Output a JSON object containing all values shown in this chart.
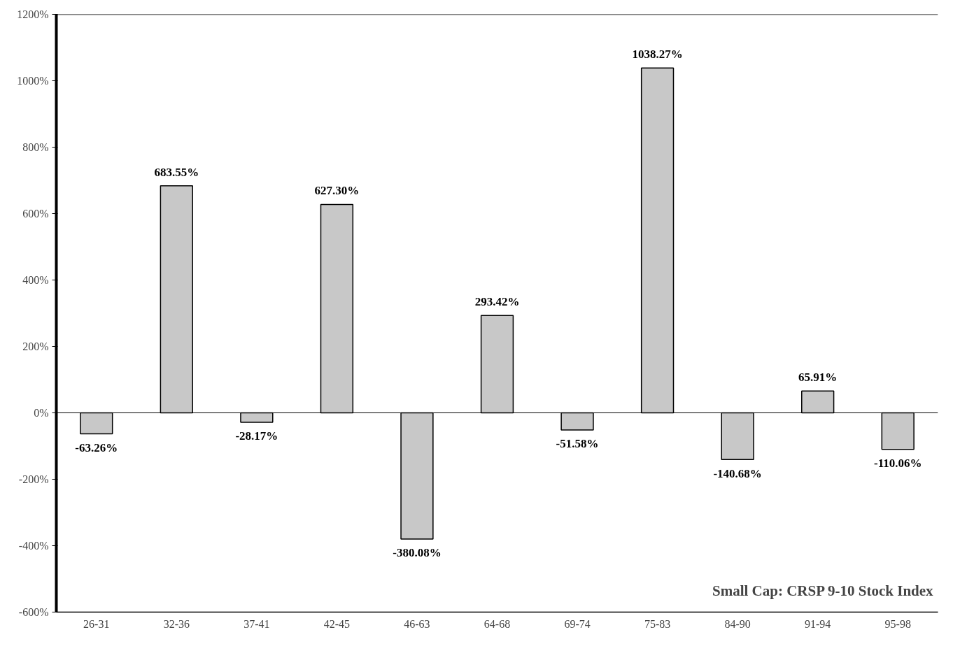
{
  "chart_data": {
    "type": "bar",
    "categories": [
      "26-31",
      "32-36",
      "37-41",
      "42-45",
      "46-63",
      "64-68",
      "69-74",
      "75-83",
      "84-90",
      "91-94",
      "95-98"
    ],
    "values": [
      -63.26,
      683.55,
      -28.17,
      627.3,
      -380.08,
      293.42,
      -51.58,
      1038.27,
      -140.68,
      65.91,
      -110.06
    ],
    "value_labels": [
      "-63.26%",
      "683.55%",
      "-28.17%",
      "627.30%",
      "-380.08%",
      "293.42%",
      "-51.58%",
      "1038.27%",
      "-140.68%",
      "65.91%",
      "-110.06%"
    ],
    "color": "#c8c8c8",
    "ylim": [
      -600,
      1200
    ],
    "yticks": [
      {
        "value": -600,
        "label": "-600%"
      },
      {
        "value": -400,
        "label": "-400%"
      },
      {
        "value": -200,
        "label": "-200%"
      },
      {
        "value": 0,
        "label": "0%"
      },
      {
        "value": 200,
        "label": "200%"
      },
      {
        "value": 400,
        "label": "400%"
      },
      {
        "value": 600,
        "label": "600%"
      },
      {
        "value": 800,
        "label": "800%"
      },
      {
        "value": 1000,
        "label": "1000%"
      },
      {
        "value": 1200,
        "label": "1200%"
      }
    ],
    "annotations": [
      "Small Cap: CRSP 9-10 Stock Index"
    ]
  }
}
